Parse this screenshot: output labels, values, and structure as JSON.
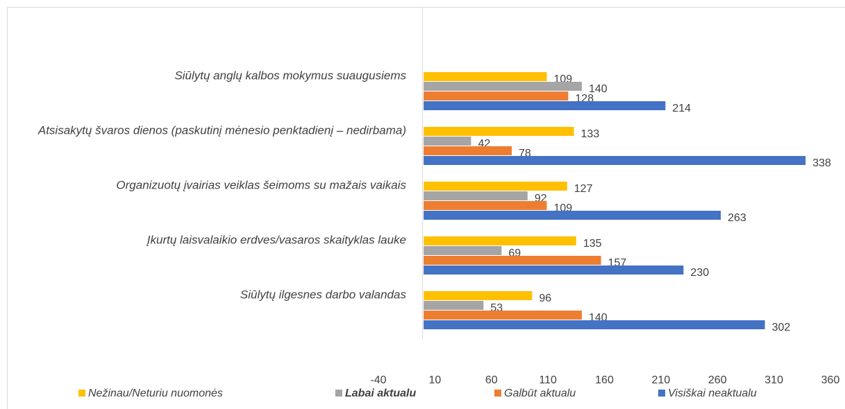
{
  "chart_data": {
    "type": "barh",
    "categories": [
      "Siūlytų anglų kalbos mokymus suaugusiems",
      "Atsisakytų švaros dienos (paskutinį mėnesio penktadienį – nedirbama)",
      "Organizuotų įvairias veiklas šeimoms su mažais vaikais",
      "Įkurtų laisvalaikio erdves/vasaros skaityklas lauke",
      "Siūlytų ilgesnes darbo valandas"
    ],
    "series": [
      {
        "name": "Nežinau/Neturiu nuomonės",
        "color": "#FFC000",
        "values": [
          109,
          133,
          127,
          135,
          96
        ]
      },
      {
        "name": "Labai aktualu",
        "color": "#A5A5A5",
        "values": [
          140,
          42,
          92,
          69,
          53
        ]
      },
      {
        "name": "Galbūt aktualu",
        "color": "#ED7D31",
        "values": [
          128,
          78,
          109,
          157,
          140
        ]
      },
      {
        "name": "Visiškai neaktualu",
        "color": "#4472C4",
        "values": [
          214,
          338,
          263,
          230,
          302
        ]
      }
    ],
    "xlim": [
      -40,
      360
    ],
    "xticks": [
      -40,
      10,
      60,
      110,
      160,
      210,
      260,
      310,
      360
    ],
    "legend": "bottom"
  }
}
